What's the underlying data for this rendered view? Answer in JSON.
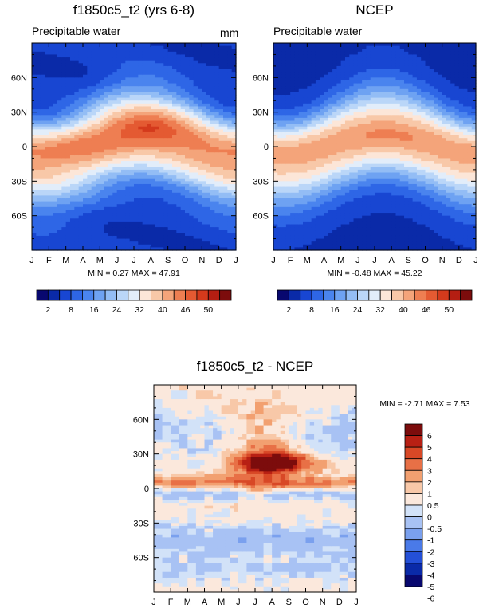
{
  "chart_data": [
    {
      "type": "heatmap",
      "title": "f1850c5_t2 (yrs 6-8)",
      "subtitle": "Precipitable water",
      "units": "mm",
      "stats": "MIN =  0.27 MAX =  47.91",
      "min": 0.27,
      "max": 47.91,
      "x_ticks": [
        "J",
        "F",
        "M",
        "A",
        "M",
        "J",
        "J",
        "A",
        "S",
        "O",
        "N",
        "D",
        "J"
      ],
      "y_ticks": [
        "60N",
        "30N",
        "0",
        "30S",
        "60S"
      ],
      "y_tick_values": [
        60,
        30,
        0,
        -30,
        -60
      ],
      "ylim": [
        -90,
        90
      ],
      "field": "model",
      "colorbar_labels": [
        "2",
        "8",
        "16",
        "24",
        "32",
        "40",
        "46",
        "50"
      ]
    },
    {
      "type": "heatmap",
      "title": "NCEP",
      "subtitle": "Precipitable water",
      "stats": "MIN = -0.48 MAX =  45.22",
      "min": -0.48,
      "max": 45.22,
      "x_ticks": [
        "J",
        "F",
        "M",
        "A",
        "M",
        "J",
        "J",
        "A",
        "S",
        "O",
        "N",
        "D",
        "J"
      ],
      "y_ticks": [
        "60N",
        "30N",
        "0",
        "30S",
        "60S"
      ],
      "y_tick_values": [
        60,
        30,
        0,
        -30,
        -60
      ],
      "ylim": [
        -90,
        90
      ],
      "field": "obs",
      "colorbar_labels": [
        "2",
        "8",
        "16",
        "24",
        "32",
        "40",
        "46",
        "50"
      ]
    },
    {
      "type": "heatmap",
      "title": "f1850c5_t2 - NCEP",
      "stats": "MIN = -2.71 MAX =  7.53",
      "min": -2.71,
      "max": 7.53,
      "x_ticks": [
        "J",
        "F",
        "M",
        "A",
        "M",
        "J",
        "J",
        "A",
        "S",
        "O",
        "N",
        "D",
        "J"
      ],
      "y_ticks": [
        "60N",
        "30N",
        "0",
        "30S",
        "60S"
      ],
      "y_tick_values": [
        60,
        30,
        0,
        -30,
        -60
      ],
      "ylim": [
        -90,
        90
      ],
      "field": "diff",
      "colorbar_labels": [
        "6",
        "5",
        "4",
        "3",
        "2",
        "1",
        "0.5",
        "0",
        "-0.5",
        "-1",
        "-2",
        "-3",
        "-4",
        "-5",
        "-6"
      ]
    }
  ],
  "colors": {
    "pw_levels": [
      "#08086f",
      "#0a2aa8",
      "#1846d2",
      "#2e66e6",
      "#4a84ee",
      "#6ea2f2",
      "#93bdf5",
      "#bad6f8",
      "#e2edfa",
      "#fce6d8",
      "#f8c8a8",
      "#f4a47a",
      "#ee7e52",
      "#e45a32",
      "#d43a1c",
      "#b41e12",
      "#7c0c0c"
    ],
    "diff_levels": [
      "#08086f",
      "#0a2aa8",
      "#2450d8",
      "#4a7ae8",
      "#7aa0ee",
      "#a8c2f4",
      "#d2e2f8",
      "#fbe8dc",
      "#f8c8a8",
      "#f2a070",
      "#e87046",
      "#d84826",
      "#b82014",
      "#7c0c0c"
    ]
  }
}
